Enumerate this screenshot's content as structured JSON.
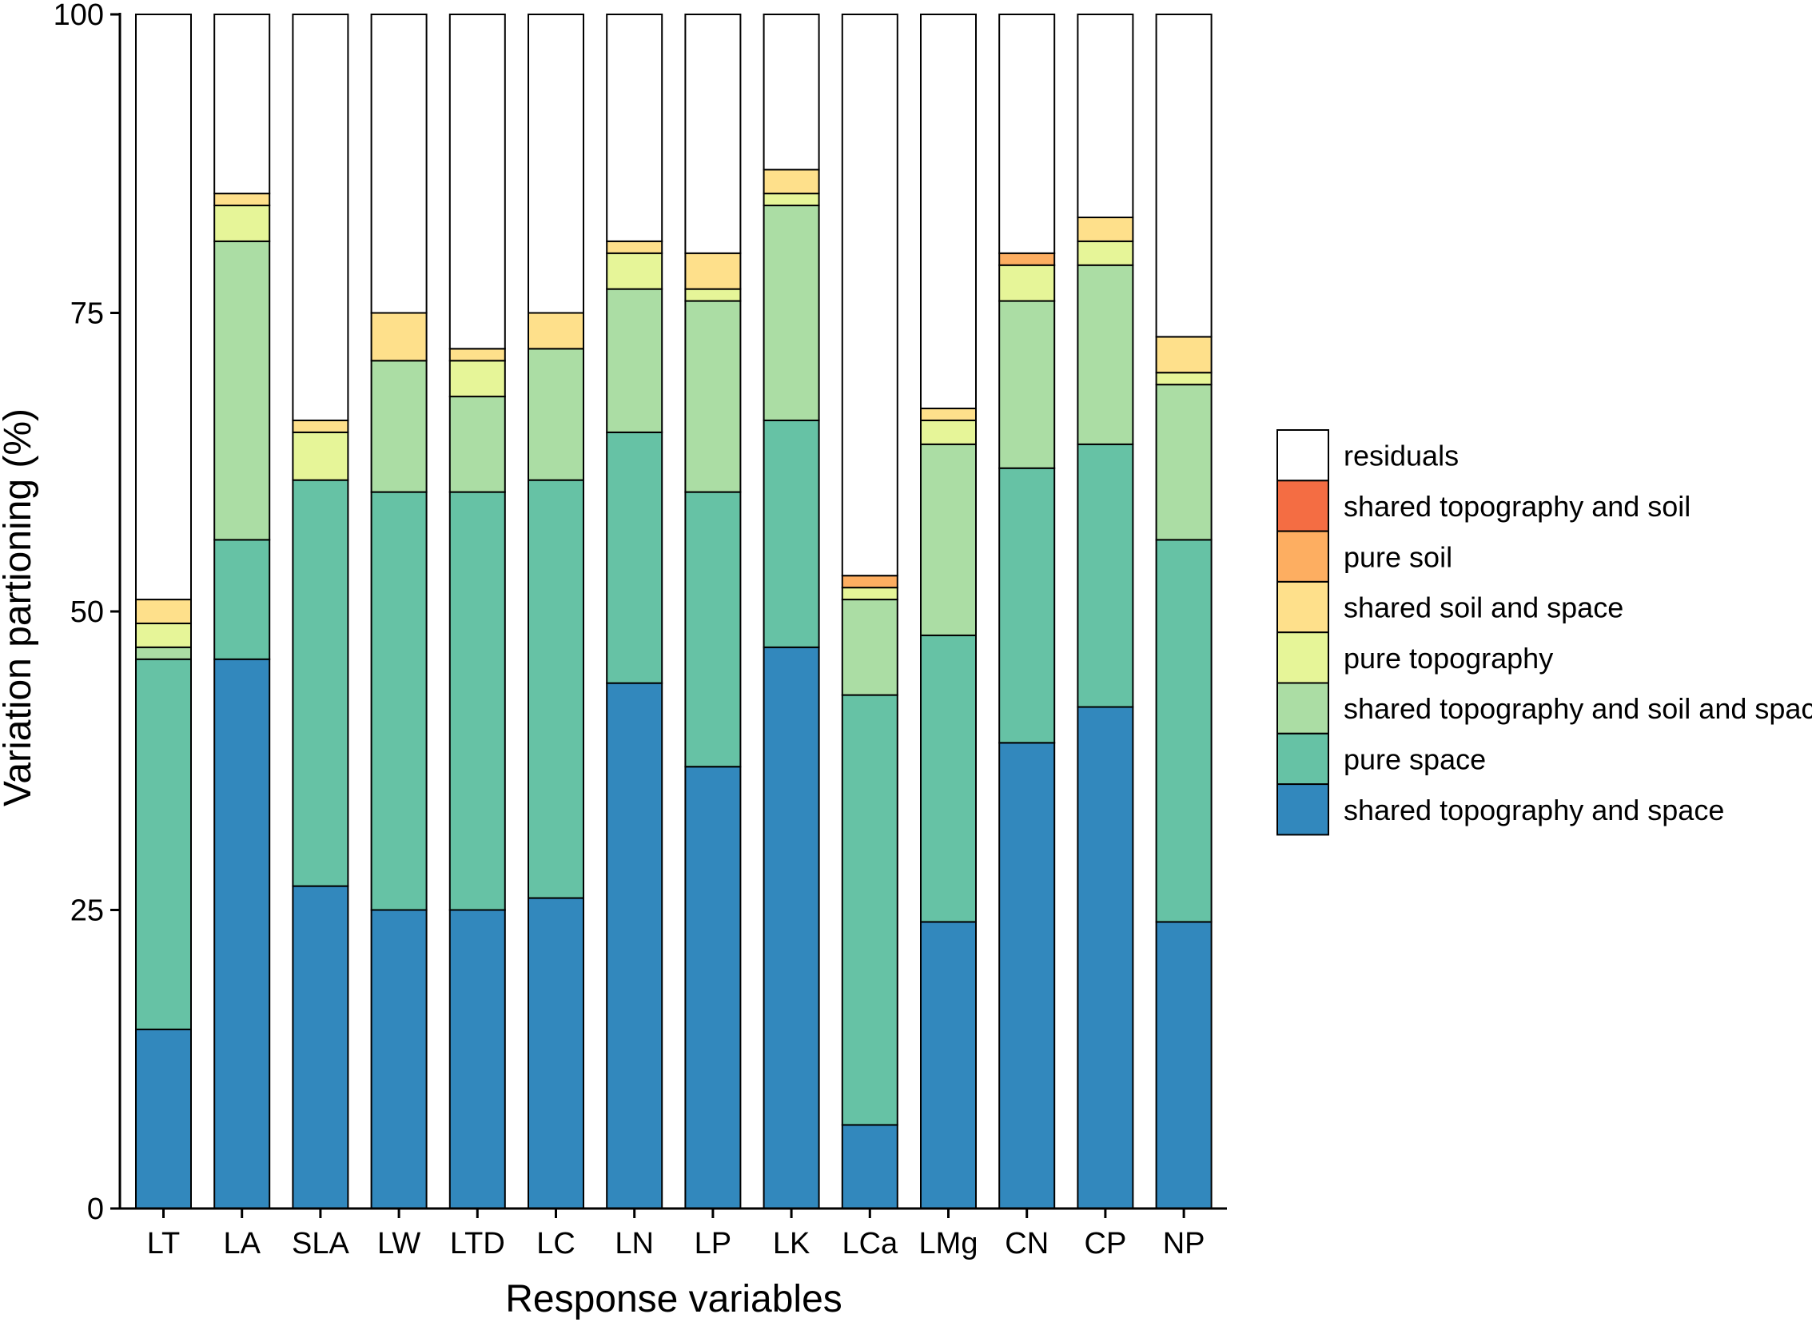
{
  "chart_data": {
    "type": "bar",
    "stacked": true,
    "title": "",
    "xlabel": "Response variables",
    "ylabel": "Variation partioning (%)",
    "ylim": [
      0,
      100
    ],
    "yticks": [
      "0",
      "25",
      "50",
      "75",
      "100"
    ],
    "ytick_values": [
      0,
      25,
      50,
      75,
      100
    ],
    "grid": false,
    "legend_position": "right",
    "categories": [
      "LT",
      "LA",
      "SLA",
      "LW",
      "LTD",
      "LC",
      "LN",
      "LP",
      "LK",
      "LCa",
      "LMg",
      "CN",
      "CP",
      "NP"
    ],
    "series": [
      {
        "name": "shared topography and space",
        "color": "#3288bd",
        "values": [
          15,
          46,
          27,
          25,
          25,
          26,
          44,
          37,
          47,
          7,
          24,
          39,
          42,
          24
        ]
      },
      {
        "name": "pure space",
        "color": "#66c2a5",
        "values": [
          31,
          10,
          34,
          35,
          35,
          35,
          21,
          23,
          19,
          36,
          24,
          23,
          22,
          32
        ]
      },
      {
        "name": "shared topography and soil and space",
        "color": "#abdda4",
        "values": [
          1,
          25,
          0,
          11,
          8,
          11,
          12,
          16,
          18,
          8,
          16,
          14,
          15,
          13
        ]
      },
      {
        "name": "pure topography",
        "color": "#e6f598",
        "values": [
          2,
          3,
          4,
          0,
          3,
          0,
          3,
          1,
          1,
          1,
          2,
          3,
          2,
          1
        ]
      },
      {
        "name": "shared soil and space",
        "color": "#fee08b",
        "values": [
          2,
          1,
          1,
          4,
          1,
          3,
          1,
          3,
          2,
          0,
          1,
          0,
          2,
          3
        ]
      },
      {
        "name": "pure soil",
        "color": "#fdae61",
        "values": [
          0,
          0,
          0,
          0,
          0,
          0,
          0,
          0,
          0,
          1,
          0,
          1,
          0,
          0
        ]
      },
      {
        "name": "shared topography and soil",
        "color": "#f46d43",
        "values": [
          0,
          0,
          0,
          0,
          0,
          0,
          0,
          0,
          0,
          0,
          0,
          0,
          0,
          0
        ]
      },
      {
        "name": "residuals",
        "color": "#ffffff",
        "values": [
          49,
          15,
          34,
          25,
          28,
          25,
          19,
          20,
          13,
          47,
          33,
          20,
          17,
          27
        ]
      }
    ],
    "legend_order": [
      "residuals",
      "shared topography and soil",
      "pure soil",
      "shared soil and space",
      "pure topography",
      "shared topography and soil and space",
      "pure space",
      "shared topography and space"
    ]
  }
}
